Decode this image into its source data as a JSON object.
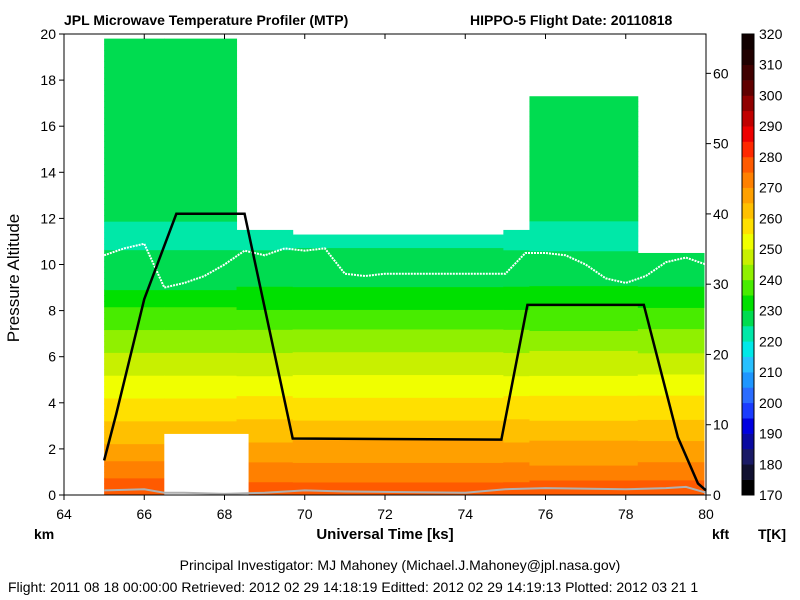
{
  "header": {
    "title_left": "JPL Microwave Temperature Profiler (MTP)",
    "title_right": "HIPPO-5  Flight Date: 20110818"
  },
  "footer": {
    "pi_line": "Principal Investigator: MJ Mahoney (Michael.J.Mahoney@jpl.nasa.gov)",
    "dates_line": "Flight: 2011 08 18 00:00:00   Retrieved: 2012 02 29 14:18:19   Editted: 2012 02 29 14:19:13   Plotted: 2012 03 21 1"
  },
  "chart_data": {
    "type": "heatmap",
    "xlabel": "Universal Time [ks]",
    "ylabel": "Pressure Altitude",
    "y_unit_left": "km",
    "y_unit_right": "kft",
    "colorbar_label": "T[K]",
    "xlim": [
      64,
      80
    ],
    "ylim": [
      0,
      20
    ],
    "y2lim": [
      0,
      65.6
    ],
    "x_ticks": [
      64,
      66,
      68,
      70,
      72,
      74,
      76,
      78,
      80
    ],
    "y_ticks": [
      0,
      2,
      4,
      6,
      8,
      10,
      12,
      14,
      16,
      18,
      20
    ],
    "y2_ticks": [
      0,
      10,
      20,
      30,
      40,
      50,
      60
    ],
    "colorbar": {
      "min": 170,
      "max": 320,
      "step": 5,
      "tick_labels": [
        170,
        180,
        190,
        200,
        210,
        220,
        230,
        240,
        250,
        260,
        270,
        280,
        290,
        300,
        310,
        320
      ],
      "colors": [
        "#000000",
        "#101030",
        "#1a1a66",
        "#0a0aa0",
        "#0000e0",
        "#1a3cff",
        "#2a6cff",
        "#1e96ff",
        "#28c0ff",
        "#00e8e8",
        "#00e8a8",
        "#00dc50",
        "#00e000",
        "#48ec00",
        "#90f000",
        "#c8f000",
        "#f0ff00",
        "#ffe000",
        "#ffc000",
        "#ffa000",
        "#ff8000",
        "#ff5a00",
        "#ff2800",
        "#ee0000",
        "#c00000",
        "#900000",
        "#600000",
        "#400000",
        "#200000",
        "#100000"
      ]
    },
    "profile_columns": [
      {
        "x0": 65.0,
        "x1": 66.5,
        "top_alt": 19.8
      },
      {
        "x0": 66.5,
        "x1": 68.3,
        "top_alt": 19.8
      },
      {
        "x0": 68.3,
        "x1": 69.7,
        "top_alt": 11.5
      },
      {
        "x0": 69.7,
        "x1": 74.95,
        "top_alt": 11.3
      },
      {
        "x0": 74.95,
        "x1": 75.6,
        "top_alt": 11.5
      },
      {
        "x0": 75.6,
        "x1": 78.3,
        "top_alt": 17.3
      },
      {
        "x0": 78.3,
        "x1": 79.95,
        "top_alt": 10.5
      }
    ],
    "flight_altitude": {
      "name": "aircraft altitude",
      "x": [
        65.0,
        65.3,
        66.0,
        66.8,
        68.5,
        69.7,
        74.9,
        75.55,
        78.45,
        79.3,
        79.8,
        80.0
      ],
      "y": [
        1.5,
        3.5,
        8.5,
        12.2,
        12.2,
        2.45,
        2.4,
        8.25,
        8.25,
        2.5,
        0.5,
        0.2
      ]
    },
    "tropopause": {
      "name": "tropopause",
      "x": [
        65.0,
        65.5,
        66.0,
        66.5,
        67.0,
        67.5,
        68.0,
        68.5,
        69.0,
        69.5,
        70.0,
        70.5,
        71.0,
        71.5,
        72.0,
        73.0,
        74.0,
        75.0,
        75.5,
        76.0,
        76.5,
        77.0,
        77.5,
        78.0,
        78.5,
        79.0,
        79.5,
        80.0
      ],
      "y": [
        10.4,
        10.7,
        10.9,
        9.0,
        9.2,
        9.5,
        10.0,
        10.6,
        10.4,
        10.7,
        10.6,
        10.7,
        9.6,
        9.5,
        9.6,
        9.6,
        9.6,
        9.6,
        10.5,
        10.5,
        10.4,
        10.0,
        9.4,
        9.2,
        9.5,
        10.1,
        10.3,
        10.0
      ]
    },
    "gray_curve": {
      "name": "ground altitude",
      "x": [
        65.0,
        66.0,
        66.5,
        67.0,
        68.0,
        69.0,
        70.0,
        71.0,
        74.0,
        75.0,
        76.0,
        78.0,
        79.0,
        79.5,
        80.0
      ],
      "y": [
        0.2,
        0.25,
        0.1,
        0.1,
        0.05,
        0.1,
        0.2,
        0.15,
        0.1,
        0.25,
        0.3,
        0.25,
        0.3,
        0.35,
        0.1
      ]
    },
    "white_gap": {
      "x0": 66.5,
      "x1": 68.6,
      "y_top": 2.65
    }
  }
}
